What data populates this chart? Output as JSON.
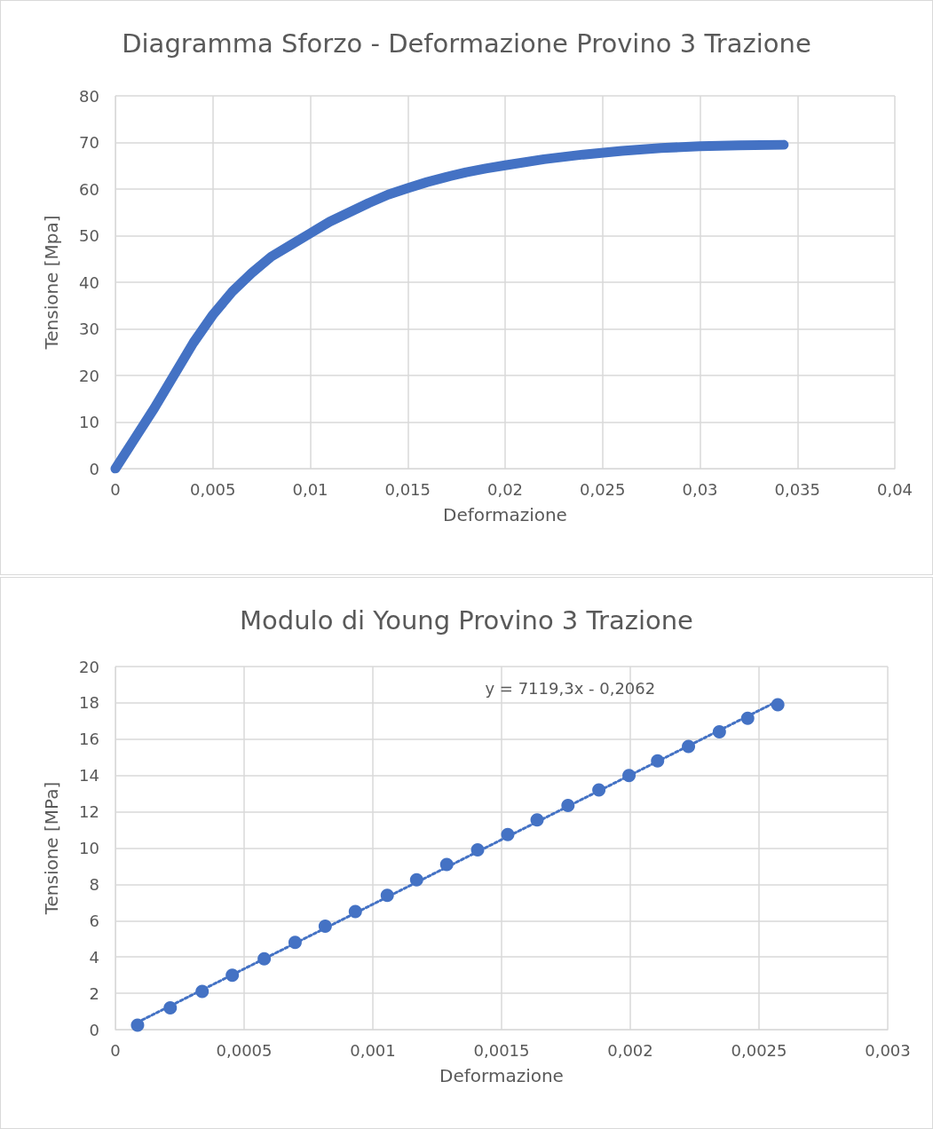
{
  "chart_data": [
    {
      "type": "line",
      "title": "Diagramma Sforzo - Deformazione Provino 3 Trazione",
      "xlabel": "Deformazione",
      "ylabel": "Tensione [Mpa]",
      "grid": true,
      "marker": "none",
      "xlim": [
        0,
        0.04
      ],
      "xticks": [
        0,
        {
          "value": 0.005,
          "label": "0,005"
        },
        {
          "value": 0.01,
          "label": "0,01"
        },
        {
          "value": 0.015,
          "label": "0,015"
        },
        {
          "value": 0.02,
          "label": "0,02"
        },
        {
          "value": 0.025,
          "label": "0,025"
        },
        {
          "value": 0.03,
          "label": "0,03"
        },
        {
          "value": 0.035,
          "label": "0,035"
        },
        {
          "value": 0.04,
          "label": "0,04"
        }
      ],
      "ylim": [
        0,
        80
      ],
      "yticks": [
        0,
        10,
        20,
        30,
        40,
        50,
        60,
        70,
        80
      ],
      "series": [
        {
          "color": "#4472c4",
          "x": [
            0,
            0.001,
            0.002,
            0.003,
            0.004,
            0.005,
            0.006,
            0.007,
            0.008,
            0.009,
            0.01,
            0.011,
            0.012,
            0.013,
            0.014,
            0.015,
            0.016,
            0.017,
            0.018,
            0.019,
            0.02,
            0.022,
            0.024,
            0.026,
            0.028,
            0.03,
            0.032,
            0.0343
          ],
          "values": [
            0,
            6.5,
            13,
            20,
            27,
            33,
            38,
            42,
            45.5,
            48,
            50.5,
            53,
            55,
            57,
            58.8,
            60.2,
            61.5,
            62.6,
            63.6,
            64.4,
            65.1,
            66.4,
            67.4,
            68.2,
            68.8,
            69.2,
            69.4,
            69.5
          ]
        }
      ]
    },
    {
      "type": "scatter",
      "title": "Modulo di Young Provino 3 Trazione",
      "xlabel": "Deformazione",
      "ylabel": "Tensione [MPa]",
      "grid": true,
      "marker": "circle",
      "xlim": [
        0,
        0.003
      ],
      "xticks": [
        0,
        {
          "value": 0.0005,
          "label": "0,0005"
        },
        {
          "value": 0.001,
          "label": "0,001"
        },
        {
          "value": 0.0015,
          "label": "0,0015"
        },
        {
          "value": 0.002,
          "label": "0,002"
        },
        {
          "value": 0.0025,
          "label": "0,0025"
        },
        {
          "value": 0.003,
          "label": "0,003"
        }
      ],
      "ylim": [
        0,
        20
      ],
      "yticks": [
        0,
        2,
        4,
        6,
        8,
        10,
        12,
        14,
        16,
        18,
        20
      ],
      "annotations": [
        "y = 7119,3x - 0,2062"
      ],
      "series": [
        {
          "color": "#4472c4",
          "x": [
            8.6e-05,
            0.000213,
            0.000337,
            0.000454,
            0.000578,
            0.000698,
            0.000815,
            0.000932,
            0.001056,
            0.00117,
            0.001287,
            0.001407,
            0.001524,
            0.001638,
            0.001758,
            0.001878,
            0.001995,
            0.002106,
            0.002226,
            0.002346,
            0.002456,
            0.002573
          ],
          "values": [
            0.25,
            1.2,
            2.1,
            3.0,
            3.9,
            4.8,
            5.7,
            6.5,
            7.4,
            8.25,
            9.1,
            9.9,
            10.75,
            11.55,
            12.35,
            13.2,
            14.0,
            14.8,
            15.6,
            16.4,
            17.15,
            17.9
          ]
        },
        {
          "type": "line",
          "color": "#4472c4",
          "marker": "none",
          "line_style": "dotted",
          "x": [
            8.6e-05,
            0.002573
          ],
          "values": [
            0.4,
            18.1
          ]
        }
      ]
    }
  ]
}
